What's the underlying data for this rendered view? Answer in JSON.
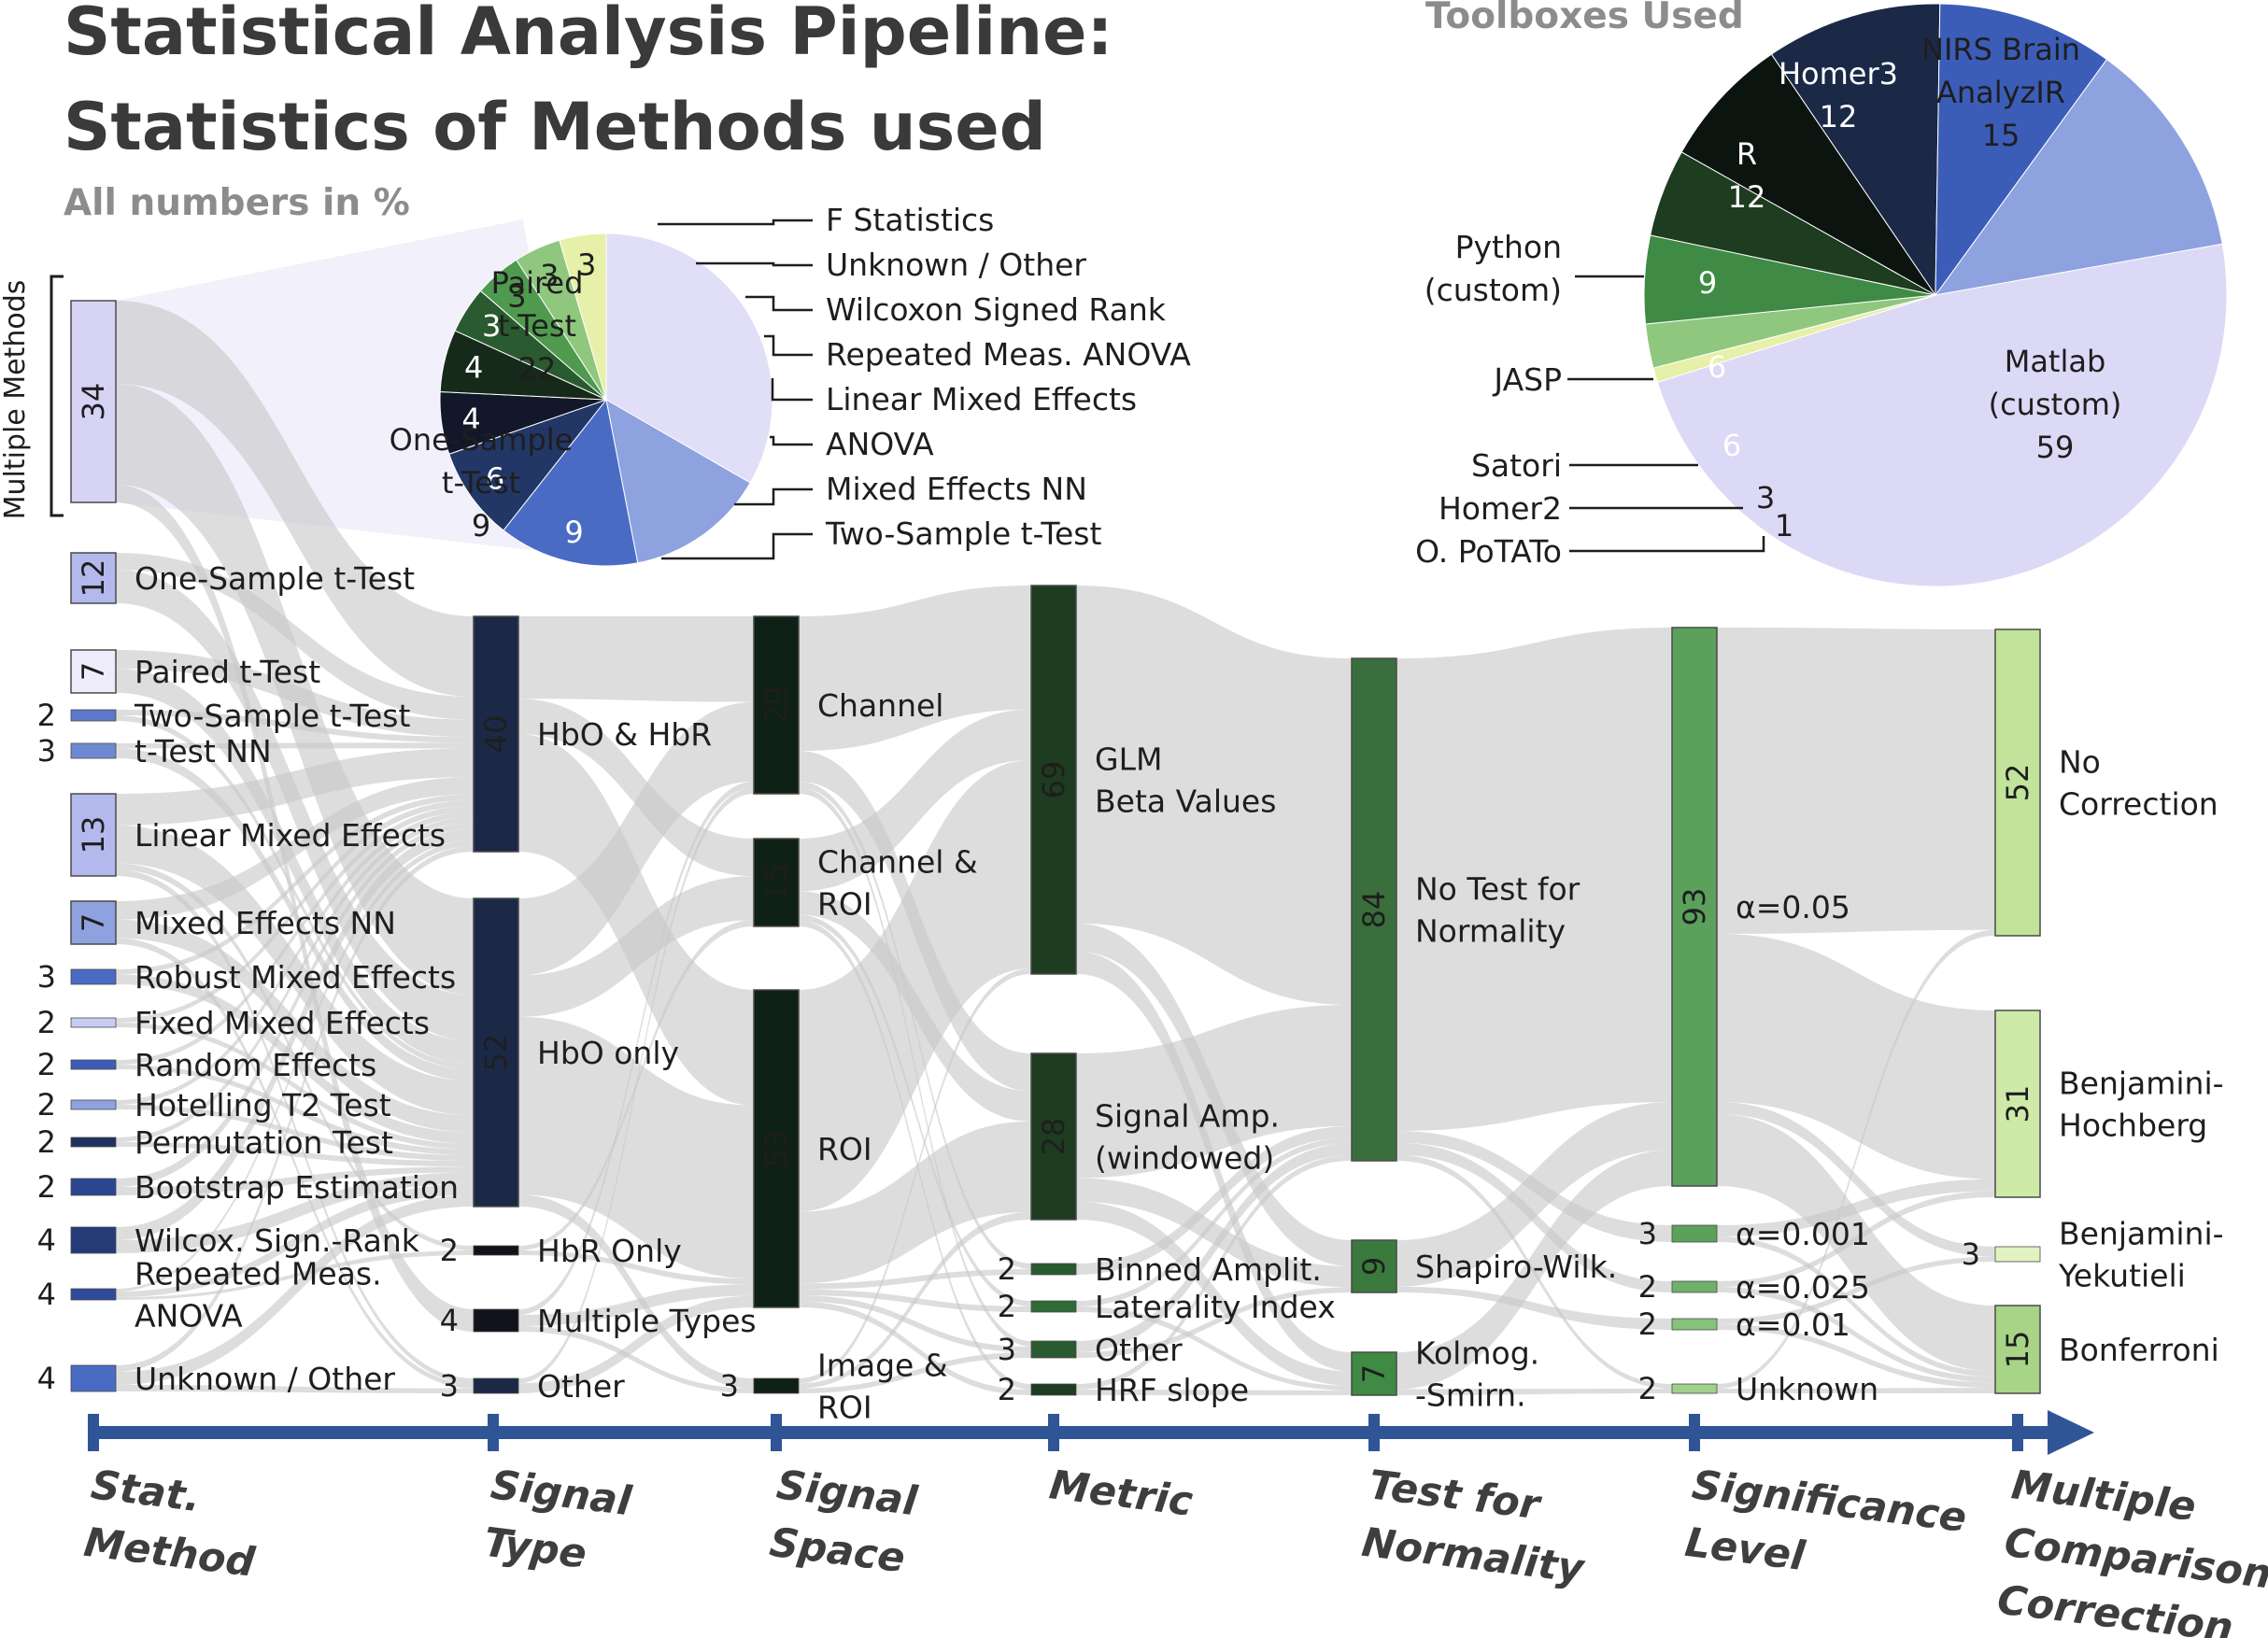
{
  "title_line1": "Statistical Analysis Pipeline:",
  "title_line2": "Statistics of Methods used",
  "subtitle": "All numbers in %",
  "bracket_label": "Multiple Methods",
  "colors": {
    "link": "#c8c8c8",
    "axis": "#2f5597"
  },
  "chart_data": [
    {
      "type": "sankey",
      "axis_labels": [
        [
          "Stat.",
          "Method"
        ],
        [
          "Signal",
          "Type"
        ],
        [
          "Signal",
          "Space"
        ],
        [
          "Metric"
        ],
        [
          "Test for",
          "Normality"
        ],
        [
          "Significance",
          "Level"
        ],
        [
          "Multiple",
          "Comparisons",
          "Correction"
        ]
      ],
      "stages": [
        [
          {
            "name": "Multiple Methods",
            "label": [],
            "value": 34,
            "color": "#d6d3f5"
          },
          {
            "name": "One-Sample t-Test",
            "label": [
              "One-Sample t-Test"
            ],
            "value": 12,
            "color": "#b3b8ed"
          },
          {
            "name": "Paired t-Test",
            "label": [
              "Paired t-Test"
            ],
            "value": 7,
            "color": "#eeecfb"
          },
          {
            "name": "Two-Sample t-Test",
            "label": [
              "Two-Sample t-Test"
            ],
            "value": 2,
            "color": "#5b78c9"
          },
          {
            "name": "t-Test NN",
            "label": [
              "t-Test NN"
            ],
            "value": 3,
            "color": "#6e88d2"
          },
          {
            "name": "Linear Mixed Effects",
            "label": [
              "Linear Mixed Effects"
            ],
            "value": 13,
            "color": "#b3b8ed"
          },
          {
            "name": "Mixed Effects NN",
            "label": [
              "Mixed Effects NN"
            ],
            "value": 7,
            "color": "#8ea2df"
          },
          {
            "name": "Robust Mixed Effects",
            "label": [
              "Robust Mixed Effects"
            ],
            "value": 3,
            "color": "#4a6bc3"
          },
          {
            "name": "Fixed Mixed Effects",
            "label": [
              "Fixed Mixed Effects"
            ],
            "value": 2,
            "color": "#c7ccf1"
          },
          {
            "name": "Random Effects",
            "label": [
              "Random Effects"
            ],
            "value": 2,
            "color": "#3b5db8"
          },
          {
            "name": "Hotelling T2 Test",
            "label": [
              "Hotelling T2 Test"
            ],
            "value": 2,
            "color": "#8ea2df"
          },
          {
            "name": "Permutation Test",
            "label": [
              "Permutation Test"
            ],
            "value": 2,
            "color": "#1f3160"
          },
          {
            "name": "Bootstrap Estimation",
            "label": [
              "Bootstrap Estimation"
            ],
            "value": 2,
            "color": "#2b4590"
          },
          {
            "name": "Wilcox. Sign.-Rank",
            "label": [
              "Wilcox. Sign.-Rank"
            ],
            "value": 4,
            "color": "#243b78"
          },
          {
            "name": "Repeated Meas. ANOVA",
            "label": [
              "Repeated Meas.",
              "ANOVA"
            ],
            "value": 4,
            "color": "#2f4b99"
          },
          {
            "name": "Unknown / Other",
            "label": [
              "Unknown / Other"
            ],
            "value": 4,
            "color": "#4a6bc3"
          }
        ],
        [
          {
            "name": "HbO & HbR",
            "label": [
              "HbO & HbR"
            ],
            "value": 40,
            "color": "#1b2947"
          },
          {
            "name": "HbO only",
            "label": [
              "HbO only"
            ],
            "value": 52,
            "color": "#1b2947"
          },
          {
            "name": "HbR Only",
            "label": [
              "HbR Only"
            ],
            "value": 2,
            "color": "#10131c"
          },
          {
            "name": "Multiple Types",
            "label": [
              "Multiple Types"
            ],
            "value": 4,
            "color": "#10131c"
          },
          {
            "name": "Other",
            "label": [
              "Other"
            ],
            "value": 3,
            "color": "#1b2947"
          }
        ],
        [
          {
            "name": "Channel",
            "label": [
              "Channel"
            ],
            "value": 29,
            "color": "#0f2016"
          },
          {
            "name": "Channel & ROI",
            "label": [
              "Channel &",
              "ROI"
            ],
            "value": 15,
            "color": "#0f2016"
          },
          {
            "name": "ROI",
            "label": [
              "ROI"
            ],
            "value": 53,
            "color": "#0f2016"
          },
          {
            "name": "Image & ROI",
            "label": [
              "Image &",
              "ROI"
            ],
            "value": 3,
            "color": "#0f2016"
          }
        ],
        [
          {
            "name": "GLM Beta Values",
            "label": [
              "GLM",
              "Beta Values"
            ],
            "value": 69,
            "color": "#1d3c20"
          },
          {
            "name": "Signal Amp. (windowed)",
            "label": [
              "Signal Amp.",
              "(windowed)"
            ],
            "value": 28,
            "color": "#1d3c20"
          },
          {
            "name": "Binned Amplit.",
            "label": [
              "Binned Amplit."
            ],
            "value": 2,
            "color": "#2a5a2f"
          },
          {
            "name": "Laterality Index",
            "label": [
              "Laterality Index"
            ],
            "value": 2,
            "color": "#2f6b35"
          },
          {
            "name": "Other",
            "label": [
              "Other"
            ],
            "value": 3,
            "color": "#2a5a2f"
          },
          {
            "name": "HRF slope",
            "label": [
              "HRF slope"
            ],
            "value": 2,
            "color": "#1d3c20"
          }
        ],
        [
          {
            "name": "No Test for Normality",
            "label": [
              "No Test for",
              "Normality"
            ],
            "value": 84,
            "color": "#3a6e3c"
          },
          {
            "name": "Shapiro-Wilk.",
            "label": [
              "Shapiro-Wilk."
            ],
            "value": 9,
            "color": "#3a7a3d"
          },
          {
            "name": "Kolmog. -Smirn.",
            "label": [
              "Kolmog.",
              "-Smirn."
            ],
            "value": 7,
            "color": "#3f8a44"
          }
        ],
        [
          {
            "name": "α=0.05",
            "label": [
              "α=0.05"
            ],
            "value": 93,
            "color": "#5ba05b"
          },
          {
            "name": "α=0.001",
            "label": [
              "α=0.001"
            ],
            "value": 3,
            "color": "#5ba05b"
          },
          {
            "name": "α=0.025",
            "label": [
              "α=0.025"
            ],
            "value": 2,
            "color": "#6fb06a"
          },
          {
            "name": "α=0.01",
            "label": [
              "α=0.01"
            ],
            "value": 2,
            "color": "#86c27a"
          },
          {
            "name": "Unknown",
            "label": [
              "Unknown"
            ],
            "value": 2,
            "color": "#9ed18a"
          }
        ],
        [
          {
            "name": "No Correction",
            "label": [
              "No",
              "Correction"
            ],
            "value": 52,
            "color": "#c2e39a"
          },
          {
            "name": "Benjamini-Hochberg",
            "label": [
              "Benjamini-",
              "Hochberg"
            ],
            "value": 31,
            "color": "#cfe9a9"
          },
          {
            "name": "Benjamini-Yekutieli",
            "label": [
              "Benjamini-",
              "Yekutieli"
            ],
            "value": 3,
            "color": "#e3f2c1"
          },
          {
            "name": "Bonferroni",
            "label": [
              "Bonferroni"
            ],
            "value": 15,
            "color": "#a7d486"
          }
        ]
      ]
    },
    {
      "type": "pie",
      "slices": [
        {
          "name": "Paired t-Test",
          "value": 22,
          "color": "#e1def8"
        },
        {
          "name": "One-Sample t-Test",
          "value": 9,
          "color": "#8ea2df"
        },
        {
          "name": "Two-Sample t-Test",
          "value": 9,
          "color": "#4a6bc3"
        },
        {
          "name": "Mixed Effects NN",
          "value": 6,
          "color": "#223766"
        },
        {
          "name": "ANOVA",
          "value": 4,
          "color": "#121829"
        },
        {
          "name": "Linear Mixed Effects",
          "value": 4,
          "color": "#152a18"
        },
        {
          "name": "Repeated Meas. ANOVA",
          "value": 3,
          "color": "#2a5a2f"
        },
        {
          "name": "Wilcoxon Signed Rank",
          "value": 3,
          "color": "#4f9a4f"
        },
        {
          "name": "Unknown / Other",
          "value": 3,
          "color": "#8fc77e"
        },
        {
          "name": "F Statistics",
          "value": 3,
          "color": "#e7f0a8"
        }
      ],
      "inner_labels": [
        {
          "slice": "Paired t-Test",
          "text": [
            "Paired",
            "t-Test",
            "22"
          ]
        },
        {
          "slice": "One-Sample t-Test",
          "text": [
            "One-Sample",
            "t-Test",
            "9"
          ]
        }
      ],
      "callouts": [
        "F Statistics",
        "Unknown / Other",
        "Wilcoxon Signed Rank",
        "Repeated Meas. ANOVA",
        "Linear Mixed Effects",
        "ANOVA",
        "Mixed Effects NN",
        "Two-Sample t-Test"
      ]
    },
    {
      "type": "pie",
      "title": "Toolboxes Used",
      "slices": [
        {
          "name": "NIRS Brain AnalyzIR",
          "value": 15,
          "color": "#8ea2df"
        },
        {
          "name": "Matlab (custom)",
          "value": 59,
          "color": "#dcd9f6"
        },
        {
          "name": "O. PoTATo",
          "value": 1,
          "color": "#e7f0a8"
        },
        {
          "name": "Homer2",
          "value": 3,
          "color": "#8fc77e"
        },
        {
          "name": "Satori",
          "value": 6,
          "color": "#3f8a44"
        },
        {
          "name": "JASP",
          "value": 6,
          "color": "#1d3c20"
        },
        {
          "name": "Python (custom)",
          "value": 9,
          "color": "#0c1410"
        },
        {
          "name": "R",
          "value": 12,
          "color": "#1b2947"
        },
        {
          "name": "Homer3",
          "value": 12,
          "color": "#3b5db8"
        }
      ],
      "inner_labels": [
        {
          "slice": "NIRS Brain AnalyzIR",
          "text": [
            "NIRS Brain",
            "AnalyzIR",
            "15"
          ]
        },
        {
          "slice": "Matlab (custom)",
          "text": [
            "Matlab",
            "(custom)",
            "59"
          ]
        },
        {
          "slice": "R",
          "text": [
            "R",
            "12"
          ]
        },
        {
          "slice": "Homer3",
          "text": [
            "Homer3",
            "12"
          ]
        }
      ],
      "callouts": [
        {
          "slice": "Python (custom)",
          "text": [
            "Python",
            "(custom)"
          ]
        },
        {
          "slice": "JASP",
          "text": [
            "JASP"
          ]
        },
        {
          "slice": "Satori",
          "text": [
            "Satori"
          ]
        },
        {
          "slice": "Homer2",
          "text": [
            "Homer2"
          ]
        },
        {
          "slice": "O. PoTATo",
          "text": [
            "O. PoTATo"
          ]
        }
      ]
    }
  ]
}
